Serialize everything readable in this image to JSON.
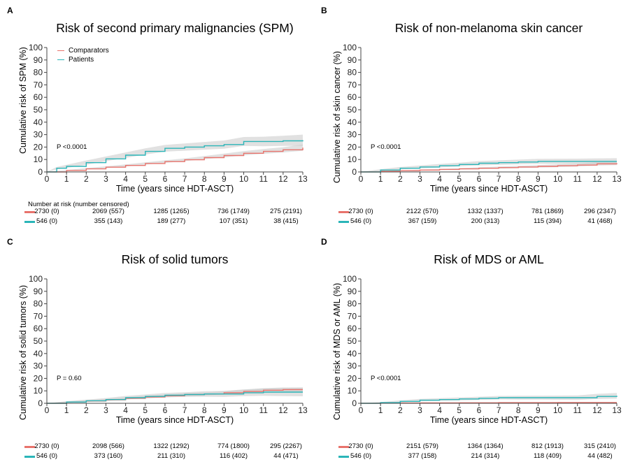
{
  "chart_data": [
    {
      "type": "line",
      "panel_label": "A",
      "title": "Risk of second primary malignancies (SPM)",
      "xlabel": "Time (years since HDT-ASCT)",
      "ylabel": "Cumulative risk of SPM (%)",
      "xlim": [
        0,
        13
      ],
      "ylim": [
        0,
        100
      ],
      "xticks": [
        0,
        1,
        2,
        3,
        4,
        5,
        6,
        7,
        8,
        9,
        10,
        11,
        12,
        13
      ],
      "yticks": [
        0,
        10,
        20,
        30,
        40,
        50,
        60,
        70,
        80,
        90,
        100
      ],
      "grid": false,
      "legend": {
        "placement": "top-left",
        "entries": [
          "Comparators",
          "Patients"
        ]
      },
      "p_value": "P <0.0001",
      "series": [
        {
          "name": "Comparators",
          "color": "#e8736c",
          "x": [
            0,
            1,
            2,
            3,
            4,
            5,
            6,
            7,
            8,
            9,
            10,
            11,
            12,
            13
          ],
          "y": [
            0,
            1.2,
            2.5,
            3.8,
            5.2,
            6.8,
            8.3,
            9.8,
            11.5,
            13.2,
            15,
            16.5,
            17.8,
            19.5
          ],
          "ci_low": [
            0,
            0.8,
            1.9,
            3.1,
            4.4,
            5.9,
            7.3,
            8.7,
            10.2,
            11.7,
            13.3,
            14.6,
            15.7,
            17
          ],
          "ci_high": [
            0,
            1.6,
            3.1,
            4.5,
            6,
            7.7,
            9.3,
            10.9,
            12.8,
            14.7,
            16.7,
            18.4,
            19.9,
            22
          ]
        },
        {
          "name": "Patients",
          "color": "#2bb5b8",
          "x": [
            0,
            0.5,
            1,
            2,
            3,
            4,
            5,
            6,
            7,
            8,
            9,
            10,
            11,
            12,
            13
          ],
          "y": [
            0,
            3,
            4.5,
            7.5,
            10.5,
            13.5,
            16.5,
            19,
            20,
            21,
            22,
            24.5,
            24.5,
            25,
            25.5
          ],
          "ci_low": [
            0,
            2,
            3.2,
            5.8,
            8.6,
            11.3,
            14,
            16.3,
            17.1,
            17.9,
            18.7,
            20.9,
            20.7,
            20.9,
            21
          ],
          "ci_high": [
            0,
            4,
            5.8,
            9.2,
            12.4,
            15.7,
            19,
            21.7,
            22.9,
            24.1,
            25.3,
            28.1,
            28.3,
            29.1,
            30
          ]
        }
      ],
      "number_at_risk": {
        "header": "Number at risk (number censored)",
        "rows": [
          {
            "color": "#e8736c",
            "values": [
              "2730 (0)",
              "2069 (557)",
              "1285 (1265)",
              "736 (1749)",
              "275 (2191)"
            ]
          },
          {
            "color": "#2bb5b8",
            "values": [
              "546 (0)",
              "355 (143)",
              "189 (277)",
              "107 (351)",
              "38 (415)"
            ]
          }
        ]
      }
    },
    {
      "type": "line",
      "panel_label": "B",
      "title": "Risk of non-melanoma skin cancer",
      "xlabel": "Time (years since HDT-ASCT)",
      "ylabel": "Cumulative risk of skin cancer (%)",
      "xlim": [
        0,
        13
      ],
      "ylim": [
        0,
        100
      ],
      "xticks": [
        0,
        1,
        2,
        3,
        4,
        5,
        6,
        7,
        8,
        9,
        10,
        11,
        12,
        13
      ],
      "yticks": [
        0,
        10,
        20,
        30,
        40,
        50,
        60,
        70,
        80,
        90,
        100
      ],
      "grid": false,
      "p_value": "P <0.0001",
      "series": [
        {
          "name": "Comparators",
          "color": "#e8736c",
          "x": [
            0,
            1,
            2,
            3,
            4,
            5,
            6,
            7,
            8,
            9,
            10,
            11,
            12,
            13
          ],
          "y": [
            0,
            0.5,
            1,
            1.5,
            2,
            2.5,
            3,
            3.5,
            4,
            4.5,
            5,
            5.5,
            6.5,
            7
          ],
          "ci_low": [
            0,
            0.3,
            0.7,
            1.1,
            1.5,
            1.9,
            2.3,
            2.7,
            3.1,
            3.5,
            3.9,
            4.3,
            5.1,
            5.5
          ],
          "ci_high": [
            0,
            0.7,
            1.3,
            1.9,
            2.5,
            3.1,
            3.7,
            4.3,
            4.9,
            5.5,
            6.1,
            6.7,
            7.9,
            8.5
          ]
        },
        {
          "name": "Patients",
          "color": "#2bb5b8",
          "x": [
            0,
            1,
            2,
            3,
            4,
            5,
            6,
            7,
            8,
            9,
            10,
            11,
            12,
            13
          ],
          "y": [
            0,
            1.5,
            3,
            4,
            5,
            6,
            7,
            7.5,
            8,
            8.5,
            8.5,
            8.5,
            8.5,
            8.5
          ],
          "ci_low": [
            0,
            0.8,
            2,
            2.8,
            3.6,
            4.5,
            5.3,
            5.7,
            6.1,
            6.5,
            6.4,
            6.3,
            6.1,
            6
          ],
          "ci_high": [
            0,
            2.2,
            4,
            5.2,
            6.4,
            7.5,
            8.7,
            9.3,
            9.9,
            10.5,
            10.6,
            10.7,
            10.9,
            11
          ]
        }
      ],
      "number_at_risk": {
        "rows": [
          {
            "color": "#e8736c",
            "values": [
              "2730 (0)",
              "2122 (570)",
              "1332 (1337)",
              "781 (1869)",
              "296 (2347)"
            ]
          },
          {
            "color": "#2bb5b8",
            "values": [
              "546 (0)",
              "367 (159)",
              "200 (313)",
              "115 (394)",
              "41 (468)"
            ]
          }
        ]
      }
    },
    {
      "type": "line",
      "panel_label": "C",
      "title": "Risk of solid tumors",
      "xlabel": "Time (years since HDT-ASCT)",
      "ylabel": "Cumulative risk of solid tumors (%)",
      "xlim": [
        0,
        13
      ],
      "ylim": [
        0,
        100
      ],
      "xticks": [
        0,
        1,
        2,
        3,
        4,
        5,
        6,
        7,
        8,
        9,
        10,
        11,
        12,
        13
      ],
      "yticks": [
        0,
        10,
        20,
        30,
        40,
        50,
        60,
        70,
        80,
        90,
        100
      ],
      "grid": false,
      "p_value": "P = 0.60",
      "series": [
        {
          "name": "Comparators",
          "color": "#e8736c",
          "x": [
            0,
            1,
            2,
            3,
            4,
            5,
            6,
            7,
            8,
            9,
            10,
            11,
            12,
            13
          ],
          "y": [
            0,
            1,
            1.8,
            2.8,
            4,
            5,
            6,
            7,
            7.5,
            8.5,
            9.5,
            10.5,
            11,
            11
          ],
          "ci_low": [
            0,
            0.6,
            1.3,
            2.1,
            3.2,
            4.1,
            5,
            5.9,
            6.3,
            7.2,
            8.1,
            8.9,
            9.3,
            9.2
          ],
          "ci_high": [
            0,
            1.4,
            2.3,
            3.5,
            4.8,
            5.9,
            7,
            8.1,
            8.7,
            9.8,
            10.9,
            12.1,
            12.7,
            12.8
          ]
        },
        {
          "name": "Patients",
          "color": "#2bb5b8",
          "x": [
            0,
            1,
            2,
            3,
            4,
            5,
            6,
            7,
            8,
            9,
            10,
            11,
            12,
            13
          ],
          "y": [
            0,
            1,
            2,
            3,
            4.5,
            5.5,
            6.5,
            7,
            7.5,
            7.5,
            8.5,
            9,
            9,
            9
          ],
          "ci_low": [
            0,
            0.3,
            1.1,
            1.8,
            3.1,
            3.9,
            4.7,
            5.1,
            5.3,
            5.1,
            5.8,
            6,
            5.8,
            5.6
          ],
          "ci_high": [
            0,
            1.7,
            2.9,
            4.2,
            5.9,
            7.1,
            8.3,
            8.9,
            9.7,
            9.9,
            11.2,
            12,
            12.2,
            12.4
          ]
        }
      ],
      "number_at_risk": {
        "rows": [
          {
            "color": "#e8736c",
            "values": [
              "2730 (0)",
              "2098 (566)",
              "1322 (1292)",
              "774 (1800)",
              "295 (2267)"
            ]
          },
          {
            "color": "#2bb5b8",
            "values": [
              "546 (0)",
              "373 (160)",
              "211 (310)",
              "116 (402)",
              "44 (471)"
            ]
          }
        ]
      }
    },
    {
      "type": "line",
      "panel_label": "D",
      "title": "Risk of MDS or AML",
      "xlabel": "Time (years since HDT-ASCT)",
      "ylabel": "Cumulative risk of MDS or AML (%)",
      "xlim": [
        0,
        13
      ],
      "ylim": [
        0,
        100
      ],
      "xticks": [
        0,
        1,
        2,
        3,
        4,
        5,
        6,
        7,
        8,
        9,
        10,
        11,
        12,
        13
      ],
      "yticks": [
        0,
        10,
        20,
        30,
        40,
        50,
        60,
        70,
        80,
        90,
        100
      ],
      "grid": false,
      "p_value": "P <0.0001",
      "series": [
        {
          "name": "Comparators",
          "color": "#e8736c",
          "x": [
            0,
            1,
            2,
            3,
            4,
            5,
            6,
            7,
            8,
            9,
            10,
            11,
            12,
            13
          ],
          "y": [
            0,
            0.1,
            0.2,
            0.3,
            0.3,
            0.4,
            0.4,
            0.5,
            0.5,
            0.5,
            0.6,
            0.6,
            0.6,
            0.6
          ],
          "ci_low": [
            0,
            0,
            0.1,
            0.1,
            0.1,
            0.2,
            0.2,
            0.2,
            0.2,
            0.2,
            0.3,
            0.3,
            0.3,
            0.3
          ],
          "ci_high": [
            0,
            0.2,
            0.3,
            0.5,
            0.5,
            0.6,
            0.6,
            0.8,
            0.8,
            0.8,
            0.9,
            0.9,
            0.9,
            0.9
          ]
        },
        {
          "name": "Patients",
          "color": "#2bb5b8",
          "x": [
            0,
            1,
            2,
            3,
            4,
            5,
            6,
            7,
            8,
            9,
            10,
            11,
            12,
            13
          ],
          "y": [
            0,
            0.5,
            1.5,
            2.5,
            3,
            3.5,
            4,
            4.5,
            4.5,
            4.5,
            4.5,
            4.5,
            5.5,
            6
          ],
          "ci_low": [
            0,
            0,
            0.7,
            1.5,
            1.9,
            2.3,
            2.7,
            3.1,
            3,
            2.9,
            2.8,
            2.7,
            3.4,
            3.7
          ],
          "ci_high": [
            0,
            1,
            2.3,
            3.5,
            4.1,
            4.7,
            5.3,
            5.9,
            6,
            6.1,
            6.2,
            6.3,
            7.6,
            8.3
          ]
        }
      ],
      "number_at_risk": {
        "rows": [
          {
            "color": "#e8736c",
            "values": [
              "2730 (0)",
              "2151 (579)",
              "1364 (1364)",
              "812 (1913)",
              "315 (2410)"
            ]
          },
          {
            "color": "#2bb5b8",
            "values": [
              "546 (0)",
              "377 (158)",
              "214 (314)",
              "118 (409)",
              "44 (482)"
            ]
          }
        ]
      }
    }
  ]
}
